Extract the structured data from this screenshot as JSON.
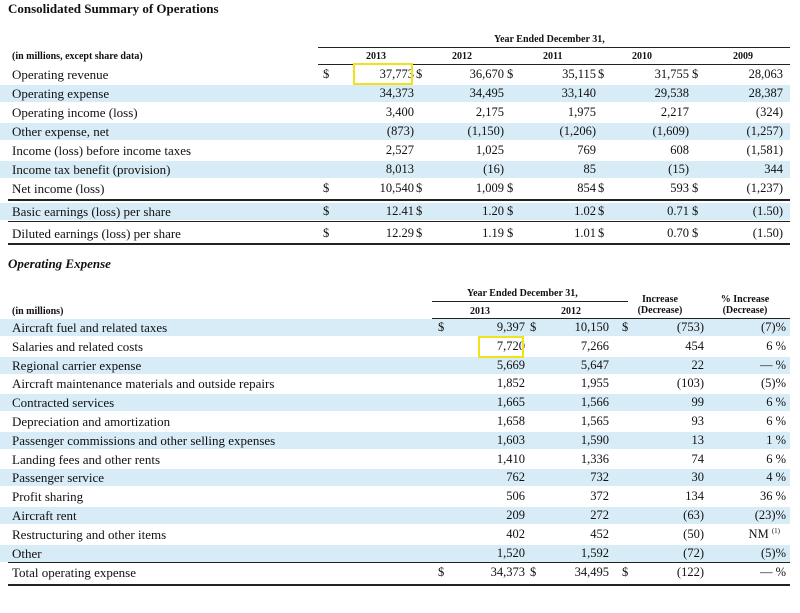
{
  "summary": {
    "title": "Consolidated Summary of Operations",
    "units": "(in millions, except share data)",
    "period_header": "Year Ended December 31,",
    "years": [
      "2013",
      "2012",
      "2011",
      "2010",
      "2009"
    ],
    "rows": [
      {
        "label": "Operating revenue",
        "dollar": true,
        "values": [
          "37,773",
          "36,670",
          "35,115",
          "31,755",
          "28,063"
        ]
      },
      {
        "label": "Operating expense",
        "dollar": false,
        "values": [
          "34,373",
          "34,495",
          "33,140",
          "29,538",
          "28,387"
        ]
      },
      {
        "label": "Operating income (loss)",
        "dollar": false,
        "values": [
          "3,400",
          "2,175",
          "1,975",
          "2,217",
          "(324)"
        ]
      },
      {
        "label": "Other expense, net",
        "dollar": false,
        "values": [
          "(873)",
          "(1,150)",
          "(1,206)",
          "(1,609)",
          "(1,257)"
        ]
      },
      {
        "label": "Income (loss) before income taxes",
        "dollar": false,
        "values": [
          "2,527",
          "1,025",
          "769",
          "608",
          "(1,581)"
        ]
      },
      {
        "label": "Income tax benefit (provision)",
        "dollar": false,
        "values": [
          "8,013",
          "(16)",
          "85",
          "(15)",
          "344"
        ]
      },
      {
        "label": "Net income (loss)",
        "dollar": true,
        "values": [
          "10,540",
          "1,009",
          "854",
          "593",
          "(1,237)"
        ]
      },
      {
        "label": "Basic earnings (loss) per share",
        "dollar": true,
        "values": [
          "12.41",
          "1.20",
          "1.02",
          "0.71",
          "(1.50)"
        ]
      },
      {
        "label": "Diluted earnings (loss) per share",
        "dollar": true,
        "values": [
          "12.29",
          "1.19",
          "1.01",
          "0.70",
          "(1.50)"
        ]
      }
    ]
  },
  "expense": {
    "title": "Operating Expense",
    "units": "(in millions)",
    "period_header": "Year Ended December 31,",
    "years": [
      "2013",
      "2012"
    ],
    "increase_header": [
      "Increase",
      "(Decrease)"
    ],
    "pct_header": [
      "% Increase",
      "(Decrease)"
    ],
    "rows": [
      {
        "label": "Aircraft fuel and related taxes",
        "dollar": true,
        "v2013": "9,397",
        "v2012": "10,150",
        "inc": "(753)",
        "pct": "(7)%"
      },
      {
        "label": "Salaries and related costs",
        "dollar": false,
        "v2013": "7,720",
        "v2012": "7,266",
        "inc": "454",
        "pct": "6 %"
      },
      {
        "label": "Regional carrier expense",
        "dollar": false,
        "v2013": "5,669",
        "v2012": "5,647",
        "inc": "22",
        "pct": "— %"
      },
      {
        "label": "Aircraft maintenance materials and outside repairs",
        "dollar": false,
        "v2013": "1,852",
        "v2012": "1,955",
        "inc": "(103)",
        "pct": "(5)%"
      },
      {
        "label": "Contracted services",
        "dollar": false,
        "v2013": "1,665",
        "v2012": "1,566",
        "inc": "99",
        "pct": "6 %"
      },
      {
        "label": "Depreciation and amortization",
        "dollar": false,
        "v2013": "1,658",
        "v2012": "1,565",
        "inc": "93",
        "pct": "6 %"
      },
      {
        "label": "Passenger commissions and other selling expenses",
        "dollar": false,
        "v2013": "1,603",
        "v2012": "1,590",
        "inc": "13",
        "pct": "1 %"
      },
      {
        "label": "Landing fees and other rents",
        "dollar": false,
        "v2013": "1,410",
        "v2012": "1,336",
        "inc": "74",
        "pct": "6 %"
      },
      {
        "label": "Passenger service",
        "dollar": false,
        "v2013": "762",
        "v2012": "732",
        "inc": "30",
        "pct": "4 %"
      },
      {
        "label": "Profit sharing",
        "dollar": false,
        "v2013": "506",
        "v2012": "372",
        "inc": "134",
        "pct": "36 %"
      },
      {
        "label": "Aircraft rent",
        "dollar": false,
        "v2013": "209",
        "v2012": "272",
        "inc": "(63)",
        "pct": "(23)%"
      },
      {
        "label": "Restructuring and other items",
        "dollar": false,
        "v2013": "402",
        "v2012": "452",
        "inc": "(50)",
        "pct": "NM",
        "pct_note": "(1)"
      },
      {
        "label": "Other",
        "dollar": false,
        "v2013": "1,520",
        "v2012": "1,592",
        "inc": "(72)",
        "pct": "(5)%"
      },
      {
        "label": "Total operating expense",
        "dollar": true,
        "v2013": "34,373",
        "v2012": "34,495",
        "inc": "(122)",
        "pct": "— %"
      }
    ]
  },
  "highlight_color": "#f0e21c",
  "band_color": "#d7ecf6"
}
